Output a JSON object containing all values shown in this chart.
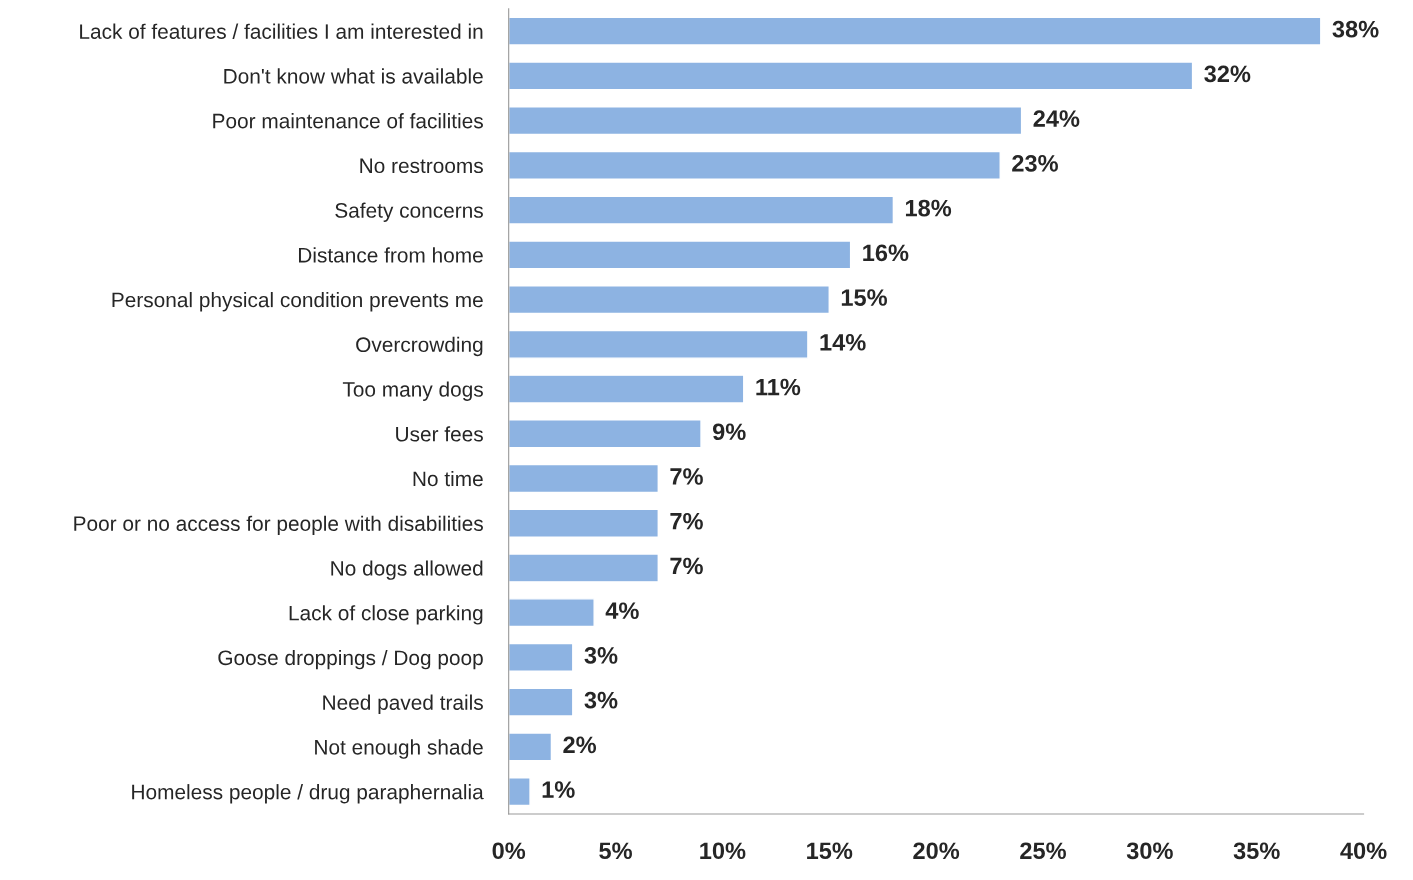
{
  "chart_data": {
    "type": "bar",
    "orientation": "horizontal",
    "categories": [
      "Lack of features / facilities I am interested in",
      "Don't know what is available",
      "Poor maintenance of facilities",
      "No restrooms",
      "Safety concerns",
      "Distance from home",
      "Personal physical condition prevents me",
      "Overcrowding",
      "Too many dogs",
      "User fees",
      "No time",
      "Poor or no access for people with disabilities",
      "No dogs allowed",
      "Lack of close parking",
      "Goose droppings / Dog poop",
      "Need paved trails",
      "Not enough shade",
      "Homeless people / drug paraphernalia"
    ],
    "values": [
      38,
      32,
      24,
      23,
      18,
      16,
      15,
      14,
      11,
      9,
      7,
      7,
      7,
      4,
      3,
      3,
      2,
      1
    ],
    "value_labels": [
      "38%",
      "32%",
      "24%",
      "23%",
      "18%",
      "16%",
      "15%",
      "14%",
      "11%",
      "9%",
      "7%",
      "7%",
      "7%",
      "4%",
      "3%",
      "3%",
      "2%",
      "1%"
    ],
    "color": "#8db3e2",
    "xlim": [
      0,
      40
    ],
    "xticks": [
      {
        "value": 0,
        "label": "0%"
      },
      {
        "value": 5,
        "label": "5%"
      },
      {
        "value": 10,
        "label": "10%"
      },
      {
        "value": 15,
        "label": "15%"
      },
      {
        "value": 20,
        "label": "20%"
      },
      {
        "value": 25,
        "label": "25%"
      },
      {
        "value": 30,
        "label": "30%"
      },
      {
        "value": 35,
        "label": "35%"
      },
      {
        "value": 40,
        "label": "40%"
      }
    ],
    "grid": false,
    "legend": false
  }
}
